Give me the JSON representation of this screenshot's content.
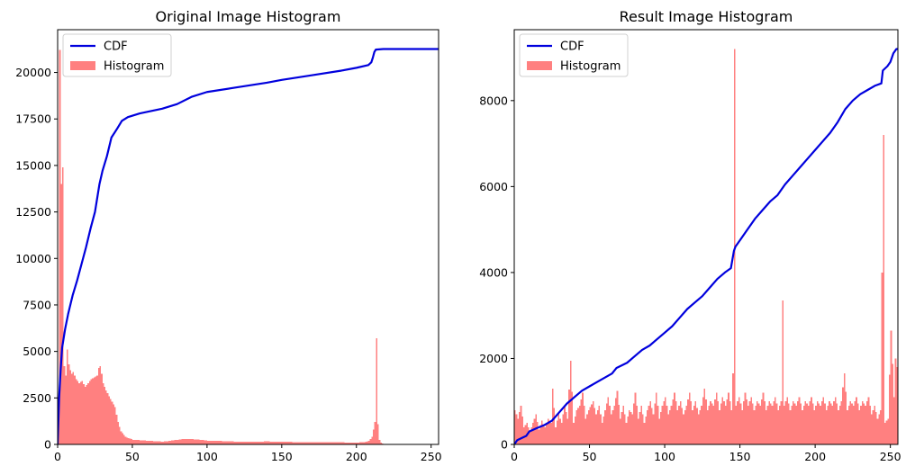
{
  "chart_data": [
    {
      "type": "bar",
      "title": "Original Image Histogram",
      "xlabel": "",
      "ylabel": "",
      "xlim": [
        0,
        255
      ],
      "ylim": [
        0,
        22300
      ],
      "xticks": [
        0,
        50,
        100,
        150,
        200,
        250
      ],
      "yticks": [
        0,
        2500,
        5000,
        7500,
        10000,
        12500,
        15000,
        17500,
        20000
      ],
      "grid": false,
      "legend": {
        "position": "top-left",
        "entries": [
          {
            "label": "CDF",
            "kind": "line",
            "color": "#0000dd"
          },
          {
            "label": "Histogram",
            "kind": "patch",
            "color": "#ff8080"
          }
        ]
      },
      "histogram": {
        "color": "#ff8080",
        "points": [
          [
            0,
            800
          ],
          [
            1,
            21200
          ],
          [
            2,
            14000
          ],
          [
            3,
            14900
          ],
          [
            4,
            4200
          ],
          [
            5,
            3700
          ],
          [
            6,
            5100
          ],
          [
            7,
            4300
          ],
          [
            8,
            4000
          ],
          [
            9,
            3800
          ],
          [
            10,
            3900
          ],
          [
            12,
            3500
          ],
          [
            14,
            3300
          ],
          [
            16,
            3400
          ],
          [
            18,
            3100
          ],
          [
            20,
            3300
          ],
          [
            22,
            3500
          ],
          [
            24,
            3600
          ],
          [
            26,
            3700
          ],
          [
            27,
            4100
          ],
          [
            28,
            4200
          ],
          [
            29,
            3800
          ],
          [
            30,
            3300
          ],
          [
            32,
            2900
          ],
          [
            34,
            2600
          ],
          [
            36,
            2300
          ],
          [
            38,
            2000
          ],
          [
            40,
            1200
          ],
          [
            42,
            700
          ],
          [
            45,
            400
          ],
          [
            50,
            250
          ],
          [
            60,
            200
          ],
          [
            70,
            150
          ],
          [
            80,
            250
          ],
          [
            85,
            300
          ],
          [
            90,
            280
          ],
          [
            95,
            250
          ],
          [
            100,
            200
          ],
          [
            110,
            180
          ],
          [
            120,
            150
          ],
          [
            130,
            150
          ],
          [
            140,
            160
          ],
          [
            150,
            140
          ],
          [
            160,
            130
          ],
          [
            170,
            110
          ],
          [
            180,
            120
          ],
          [
            190,
            110
          ],
          [
            200,
            100
          ],
          [
            205,
            130
          ],
          [
            208,
            200
          ],
          [
            210,
            400
          ],
          [
            211,
            800
          ],
          [
            212,
            1200
          ],
          [
            213,
            5700
          ],
          [
            214,
            1100
          ],
          [
            215,
            250
          ],
          [
            216,
            100
          ],
          [
            217,
            50
          ],
          [
            218,
            0
          ]
        ]
      },
      "cdf": {
        "color": "#0000dd",
        "points": [
          [
            0,
            0
          ],
          [
            1,
            2500
          ],
          [
            2,
            4000
          ],
          [
            3,
            5200
          ],
          [
            5,
            6200
          ],
          [
            7,
            7000
          ],
          [
            10,
            8000
          ],
          [
            13,
            8800
          ],
          [
            16,
            9700
          ],
          [
            19,
            10600
          ],
          [
            22,
            11600
          ],
          [
            25,
            12500
          ],
          [
            28,
            14000
          ],
          [
            30,
            14700
          ],
          [
            33,
            15500
          ],
          [
            36,
            16500
          ],
          [
            40,
            17000
          ],
          [
            43,
            17400
          ],
          [
            47,
            17600
          ],
          [
            55,
            17800
          ],
          [
            70,
            18050
          ],
          [
            80,
            18300
          ],
          [
            90,
            18700
          ],
          [
            100,
            18950
          ],
          [
            120,
            19200
          ],
          [
            140,
            19450
          ],
          [
            150,
            19600
          ],
          [
            170,
            19850
          ],
          [
            190,
            20100
          ],
          [
            200,
            20250
          ],
          [
            208,
            20400
          ],
          [
            210,
            20550
          ],
          [
            211,
            20800
          ],
          [
            212,
            21100
          ],
          [
            213,
            21230
          ],
          [
            218,
            21260
          ],
          [
            255,
            21260
          ]
        ]
      }
    },
    {
      "type": "bar",
      "title": "Result Image Histogram",
      "xlabel": "",
      "ylabel": "",
      "xlim": [
        0,
        255
      ],
      "ylim": [
        0,
        9650
      ],
      "xticks": [
        0,
        50,
        100,
        150,
        200,
        250
      ],
      "yticks": [
        0,
        2000,
        4000,
        6000,
        8000
      ],
      "grid": false,
      "legend": {
        "position": "top-left",
        "entries": [
          {
            "label": "CDF",
            "kind": "line",
            "color": "#0000dd"
          },
          {
            "label": "Histogram",
            "kind": "patch",
            "color": "#ff8080"
          }
        ]
      },
      "histogram": {
        "color": "#ff8080",
        "points": [
          [
            0,
            800
          ],
          [
            2,
            600
          ],
          [
            4,
            900
          ],
          [
            6,
            400
          ],
          [
            8,
            500
          ],
          [
            10,
            300
          ],
          [
            12,
            500
          ],
          [
            14,
            700
          ],
          [
            16,
            350
          ],
          [
            18,
            550
          ],
          [
            20,
            400
          ],
          [
            22,
            600
          ],
          [
            24,
            500
          ],
          [
            25,
            1300
          ],
          [
            27,
            400
          ],
          [
            29,
            700
          ],
          [
            31,
            500
          ],
          [
            33,
            900
          ],
          [
            35,
            600
          ],
          [
            37,
            1950
          ],
          [
            39,
            500
          ],
          [
            41,
            800
          ],
          [
            43,
            900
          ],
          [
            45,
            1200
          ],
          [
            47,
            600
          ],
          [
            49,
            800
          ],
          [
            52,
            1000
          ],
          [
            54,
            700
          ],
          [
            56,
            900
          ],
          [
            58,
            500
          ],
          [
            60,
            800
          ],
          [
            62,
            1100
          ],
          [
            64,
            700
          ],
          [
            66,
            900
          ],
          [
            68,
            1250
          ],
          [
            70,
            600
          ],
          [
            72,
            900
          ],
          [
            74,
            500
          ],
          [
            76,
            800
          ],
          [
            78,
            700
          ],
          [
            80,
            1200
          ],
          [
            82,
            600
          ],
          [
            84,
            900
          ],
          [
            86,
            500
          ],
          [
            88,
            800
          ],
          [
            90,
            1000
          ],
          [
            92,
            700
          ],
          [
            94,
            1200
          ],
          [
            96,
            600
          ],
          [
            98,
            900
          ],
          [
            100,
            1100
          ],
          [
            102,
            700
          ],
          [
            104,
            900
          ],
          [
            106,
            1200
          ],
          [
            108,
            800
          ],
          [
            110,
            1000
          ],
          [
            112,
            700
          ],
          [
            114,
            900
          ],
          [
            116,
            1200
          ],
          [
            118,
            800
          ],
          [
            120,
            1000
          ],
          [
            122,
            700
          ],
          [
            124,
            900
          ],
          [
            126,
            1300
          ],
          [
            128,
            800
          ],
          [
            130,
            1000
          ],
          [
            132,
            900
          ],
          [
            134,
            1200
          ],
          [
            136,
            800
          ],
          [
            138,
            1100
          ],
          [
            140,
            900
          ],
          [
            142,
            1200
          ],
          [
            144,
            800
          ],
          [
            145,
            1650
          ],
          [
            146,
            9200
          ],
          [
            147,
            900
          ],
          [
            149,
            1100
          ],
          [
            151,
            800
          ],
          [
            153,
            1200
          ],
          [
            155,
            900
          ],
          [
            157,
            1100
          ],
          [
            159,
            800
          ],
          [
            161,
            1000
          ],
          [
            163,
            900
          ],
          [
            165,
            1200
          ],
          [
            167,
            800
          ],
          [
            169,
            1000
          ],
          [
            171,
            900
          ],
          [
            173,
            1100
          ],
          [
            175,
            800
          ],
          [
            177,
            1000
          ],
          [
            178,
            3350
          ],
          [
            179,
            900
          ],
          [
            181,
            1100
          ],
          [
            183,
            800
          ],
          [
            185,
            1000
          ],
          [
            187,
            900
          ],
          [
            189,
            1100
          ],
          [
            191,
            800
          ],
          [
            193,
            1000
          ],
          [
            195,
            900
          ],
          [
            197,
            1100
          ],
          [
            199,
            800
          ],
          [
            201,
            1000
          ],
          [
            203,
            900
          ],
          [
            205,
            1100
          ],
          [
            207,
            800
          ],
          [
            209,
            1000
          ],
          [
            211,
            900
          ],
          [
            213,
            1100
          ],
          [
            215,
            800
          ],
          [
            217,
            1000
          ],
          [
            219,
            1650
          ],
          [
            221,
            800
          ],
          [
            223,
            1000
          ],
          [
            225,
            900
          ],
          [
            227,
            1100
          ],
          [
            229,
            800
          ],
          [
            231,
            1000
          ],
          [
            233,
            900
          ],
          [
            235,
            1100
          ],
          [
            237,
            700
          ],
          [
            239,
            900
          ],
          [
            241,
            600
          ],
          [
            243,
            800
          ],
          [
            245,
            7200
          ],
          [
            246,
            500
          ],
          [
            248,
            600
          ],
          [
            250,
            2650
          ],
          [
            252,
            1100
          ],
          [
            253,
            2000
          ],
          [
            254,
            1800
          ],
          [
            255,
            1800
          ]
        ]
      },
      "cdf": {
        "color": "#0000dd",
        "points": [
          [
            0,
            0
          ],
          [
            2,
            100
          ],
          [
            5,
            150
          ],
          [
            8,
            200
          ],
          [
            10,
            300
          ],
          [
            15,
            380
          ],
          [
            20,
            450
          ],
          [
            25,
            550
          ],
          [
            30,
            750
          ],
          [
            35,
            950
          ],
          [
            40,
            1100
          ],
          [
            45,
            1250
          ],
          [
            50,
            1350
          ],
          [
            55,
            1450
          ],
          [
            60,
            1550
          ],
          [
            65,
            1650
          ],
          [
            68,
            1780
          ],
          [
            75,
            1900
          ],
          [
            80,
            2050
          ],
          [
            85,
            2200
          ],
          [
            90,
            2300
          ],
          [
            95,
            2450
          ],
          [
            100,
            2600
          ],
          [
            105,
            2750
          ],
          [
            110,
            2950
          ],
          [
            115,
            3150
          ],
          [
            120,
            3300
          ],
          [
            125,
            3450
          ],
          [
            130,
            3650
          ],
          [
            135,
            3850
          ],
          [
            140,
            4000
          ],
          [
            144,
            4100
          ],
          [
            146,
            4500
          ],
          [
            147,
            4600
          ],
          [
            150,
            4750
          ],
          [
            155,
            5000
          ],
          [
            160,
            5250
          ],
          [
            165,
            5450
          ],
          [
            170,
            5650
          ],
          [
            175,
            5800
          ],
          [
            178,
            5950
          ],
          [
            180,
            6050
          ],
          [
            185,
            6250
          ],
          [
            190,
            6450
          ],
          [
            195,
            6650
          ],
          [
            200,
            6850
          ],
          [
            205,
            7050
          ],
          [
            210,
            7250
          ],
          [
            215,
            7500
          ],
          [
            220,
            7800
          ],
          [
            225,
            8000
          ],
          [
            230,
            8150
          ],
          [
            235,
            8250
          ],
          [
            240,
            8350
          ],
          [
            244,
            8400
          ],
          [
            245,
            8700
          ],
          [
            248,
            8800
          ],
          [
            250,
            8900
          ],
          [
            252,
            9100
          ],
          [
            254,
            9200
          ],
          [
            255,
            9200
          ]
        ]
      }
    }
  ]
}
